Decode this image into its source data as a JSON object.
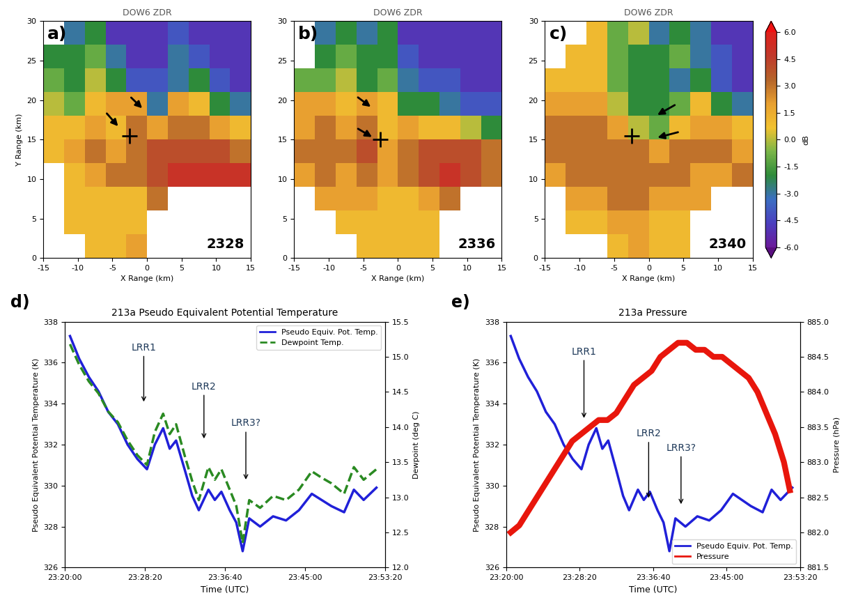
{
  "chart_data": [
    {
      "type": "heatmap",
      "title": "DOW6 ZDR",
      "panel": "a)",
      "time": "2328",
      "x_label": "X Range (km)",
      "y_label": "Y Range (km)",
      "xlim": [
        -15,
        15
      ],
      "ylim": [
        0,
        30
      ],
      "xticks": [
        -15,
        -10,
        -5,
        0,
        5,
        10,
        15
      ],
      "yticks": [
        0,
        5,
        10,
        15,
        20,
        25,
        30
      ],
      "x_centers": [
        -13.5,
        -10.5,
        -7.5,
        -4.5,
        -1.5,
        1.5,
        4.5,
        7.5,
        10.5,
        13.5
      ],
      "y_centers": [
        28.5,
        25.5,
        22.5,
        19.5,
        16.5,
        13.5,
        10.5,
        7.5,
        4.5,
        1.5
      ],
      "cells": [
        [
          null,
          -3,
          -2,
          -5,
          -5,
          -5,
          -4,
          -5,
          -5,
          -5
        ],
        [
          -2,
          -2,
          -1,
          -3,
          -5,
          -5,
          -3,
          -4,
          -5,
          -5
        ],
        [
          -1,
          -2,
          0,
          -2,
          -4,
          -4,
          -3,
          -2,
          -4,
          -5
        ],
        [
          0,
          -1,
          1,
          2,
          2,
          -3,
          2,
          1,
          -2,
          -3
        ],
        [
          1,
          1,
          2,
          1,
          3,
          2,
          3,
          3,
          2,
          1
        ],
        [
          1,
          2,
          3,
          2,
          3,
          4,
          4,
          4,
          4,
          3
        ],
        [
          null,
          1,
          2,
          3,
          3,
          4,
          5,
          5,
          5,
          5
        ],
        [
          null,
          1,
          1,
          1,
          1,
          3,
          null,
          null,
          null,
          null
        ],
        [
          null,
          1,
          1,
          1,
          1,
          null,
          null,
          null,
          null,
          null
        ],
        [
          null,
          null,
          1,
          1,
          2,
          null,
          null,
          null,
          null,
          null
        ]
      ],
      "point": [
        -2.5,
        15.5
      ],
      "arrows": [
        [
          -6,
          18.5,
          -4,
          16.5
        ],
        [
          -2.5,
          20.5,
          -0.5,
          18.8
        ]
      ]
    },
    {
      "type": "heatmap",
      "title": "DOW6 ZDR",
      "panel": "b)",
      "time": "2336",
      "x_label": "X Range (km)",
      "xlim": [
        -15,
        15
      ],
      "ylim": [
        0,
        30
      ],
      "xticks": [
        -15,
        -10,
        -5,
        0,
        5,
        10,
        15
      ],
      "yticks": [
        0,
        5,
        10,
        15,
        20,
        25,
        30
      ],
      "x_centers": [
        -13.5,
        -10.5,
        -7.5,
        -4.5,
        -1.5,
        1.5,
        4.5,
        7.5,
        10.5,
        13.5
      ],
      "y_centers": [
        28.5,
        25.5,
        22.5,
        19.5,
        16.5,
        13.5,
        10.5,
        7.5,
        4.5,
        1.5
      ],
      "cells": [
        [
          null,
          -3,
          -2,
          -3,
          -2,
          -5,
          -5,
          -5,
          -5,
          -5
        ],
        [
          null,
          -2,
          -1,
          -2,
          -2,
          -4,
          -5,
          -5,
          -5,
          -5
        ],
        [
          -1,
          -1,
          0,
          -2,
          -1,
          -3,
          -4,
          -4,
          -5,
          -5
        ],
        [
          2,
          2,
          1,
          2,
          1,
          -2,
          -2,
          -3,
          -4,
          -4
        ],
        [
          2,
          3,
          2,
          3,
          1,
          2,
          1,
          1,
          0,
          -2
        ],
        [
          3,
          3,
          3,
          4,
          2,
          3,
          4,
          4,
          4,
          3
        ],
        [
          2,
          3,
          2,
          3,
          2,
          3,
          4,
          5,
          4,
          3
        ],
        [
          null,
          2,
          2,
          2,
          1,
          1,
          2,
          3,
          null,
          null
        ],
        [
          null,
          null,
          1,
          1,
          1,
          1,
          1,
          null,
          null,
          null
        ],
        [
          null,
          null,
          null,
          1,
          1,
          1,
          1,
          null,
          null,
          null
        ]
      ],
      "point": [
        -2.5,
        15.0
      ],
      "arrows": [
        [
          -6,
          20.5,
          -3.7,
          19.0
        ],
        [
          -6,
          16.5,
          -3.5,
          15.2
        ]
      ]
    },
    {
      "type": "heatmap",
      "title": "DOW6 ZDR",
      "panel": "c)",
      "time": "2340",
      "x_label": "X Range (km)",
      "xlim": [
        -15,
        15
      ],
      "ylim": [
        0,
        30
      ],
      "xticks": [
        -15,
        -10,
        -5,
        0,
        5,
        10,
        15
      ],
      "yticks": [
        0,
        5,
        10,
        15,
        20,
        25,
        30
      ],
      "x_centers": [
        -13.5,
        -10.5,
        -7.5,
        -4.5,
        -1.5,
        1.5,
        4.5,
        7.5,
        10.5,
        13.5
      ],
      "y_centers": [
        28.5,
        25.5,
        22.5,
        19.5,
        16.5,
        13.5,
        10.5,
        7.5,
        4.5,
        1.5
      ],
      "cells": [
        [
          null,
          null,
          1,
          -1,
          0,
          -3,
          -2,
          -3,
          -5,
          -5
        ],
        [
          null,
          1,
          1,
          -1,
          -2,
          -2,
          -1,
          -3,
          -4,
          -5
        ],
        [
          1,
          1,
          1,
          -1,
          -2,
          -2,
          -3,
          -2,
          -4,
          -5
        ],
        [
          2,
          2,
          2,
          0,
          -2,
          -2,
          -1,
          1,
          -2,
          -3
        ],
        [
          3,
          3,
          3,
          2,
          0,
          -1,
          1,
          2,
          2,
          1
        ],
        [
          3,
          3,
          3,
          3,
          3,
          2,
          3,
          3,
          3,
          2
        ],
        [
          2,
          3,
          3,
          3,
          3,
          3,
          3,
          2,
          2,
          3
        ],
        [
          null,
          2,
          2,
          3,
          3,
          2,
          2,
          2,
          null,
          null
        ],
        [
          null,
          1,
          1,
          2,
          2,
          1,
          1,
          null,
          null,
          null
        ],
        [
          null,
          null,
          null,
          1,
          2,
          1,
          1,
          null,
          null,
          null
        ]
      ],
      "point": [
        -2.5,
        15.5
      ],
      "arrows": [
        [
          4,
          19.5,
          1,
          18.0
        ],
        [
          4.5,
          16.0,
          1,
          15.2
        ]
      ],
      "colorbar": {
        "label": "dB",
        "range": [
          -6,
          6
        ],
        "ticks": [
          {
            "value": -6,
            "label": "-6.0"
          },
          -4.5,
          {
            "value": -3,
            "label": "-3.0"
          },
          -1.5,
          {
            "value": 0,
            "label": "0.0"
          },
          1.5,
          {
            "value": 3,
            "label": "3.0"
          },
          4.5,
          {
            "value": 6,
            "label": "6.0"
          }
        ]
      }
    },
    {
      "type": "line",
      "panel": "d)",
      "title": "213a Pseudo Equivalent Potential Temperature",
      "x_label": "Time (UTC)",
      "y_label": "Pseudo Equivalent Potential Temperature (K)",
      "y2_label": "Dewpoint (deg C)",
      "xlim": [
        "23:20:00",
        "23:53:20"
      ],
      "xticks": [
        "23:20:00",
        "23:28:20",
        "23:36:40",
        "23:45:00",
        "23:53:20"
      ],
      "ylim": [
        326,
        338
      ],
      "yticks": [
        326,
        328,
        330,
        332,
        334,
        336,
        338
      ],
      "y2lim": [
        12,
        15.5
      ],
      "y2ticks": [
        {
          "value": 12,
          "label": "12.0"
        },
        12.5,
        {
          "value": 13,
          "label": "13.0"
        },
        13.5,
        {
          "value": 14,
          "label": "14.0"
        },
        14.5,
        {
          "value": 15,
          "label": "15.0"
        },
        15.5
      ],
      "legend": "upper right",
      "series": [
        {
          "name": "Pseudo Equiv. Pot. Temp.",
          "color": "#2020d8",
          "line_style": "solid",
          "x": [
            "23:20:32",
            "23:21:29",
            "23:22:30",
            "23:23:30",
            "23:24:31",
            "23:25:31",
            "23:26:32",
            "23:27:33",
            "23:28:33",
            "23:29:22",
            "23:30:14",
            "23:30:55",
            "23:31:35",
            "23:32:28",
            "23:33:16",
            "23:33:57",
            "23:34:57",
            "23:35:37",
            "23:36:18",
            "23:37:10",
            "23:37:51",
            "23:38:31",
            "23:39:12",
            "23:40:20",
            "23:41:41",
            "23:43:02",
            "23:44:23",
            "23:45:43",
            "23:46:44",
            "23:47:45",
            "23:49:05",
            "23:50:06",
            "23:51:07",
            "23:52:27"
          ],
          "values": [
            337.3,
            336.2,
            335.3,
            334.6,
            333.6,
            333.0,
            332.0,
            331.3,
            330.8,
            332.0,
            332.8,
            331.8,
            332.2,
            330.8,
            329.5,
            328.8,
            329.8,
            329.3,
            329.7,
            328.8,
            328.2,
            326.8,
            328.4,
            328.0,
            328.5,
            328.3,
            328.8,
            329.6,
            329.3,
            329.0,
            328.7,
            329.8,
            329.3,
            329.9
          ]
        },
        {
          "name": "Dewpoint Temp.",
          "color": "#2a8a22",
          "line_style": "dashed",
          "axis": "y2",
          "x": [
            "23:20:32",
            "23:21:29",
            "23:22:30",
            "23:23:30",
            "23:24:31",
            "23:25:31",
            "23:26:32",
            "23:27:33",
            "23:28:33",
            "23:29:22",
            "23:30:14",
            "23:30:55",
            "23:31:35",
            "23:32:28",
            "23:33:16",
            "23:33:57",
            "23:34:57",
            "23:35:37",
            "23:36:18",
            "23:37:10",
            "23:37:51",
            "23:38:31",
            "23:39:12",
            "23:40:20",
            "23:41:41",
            "23:43:02",
            "23:44:23",
            "23:45:43",
            "23:46:44",
            "23:47:45",
            "23:49:05",
            "23:50:06",
            "23:51:07",
            "23:52:27"
          ],
          "values": [
            15.18,
            14.89,
            14.65,
            14.48,
            14.22,
            14.07,
            13.81,
            13.6,
            13.46,
            13.93,
            14.19,
            13.9,
            14.04,
            13.6,
            13.23,
            12.96,
            13.43,
            13.25,
            13.4,
            13.11,
            12.88,
            12.35,
            12.96,
            12.85,
            13.02,
            12.96,
            13.11,
            13.37,
            13.28,
            13.2,
            13.05,
            13.43,
            13.25,
            13.4
          ]
        }
      ],
      "annotations": [
        {
          "text": "LRR1",
          "x": "23:28:13",
          "y": 334.0,
          "text_y": 336.5
        },
        {
          "text": "LRR2",
          "x": "23:34:29",
          "y": 332.2,
          "text_y": 334.6
        },
        {
          "text": "LRR3?",
          "x": "23:38:51",
          "y": 330.2,
          "text_y": 332.8
        }
      ]
    },
    {
      "type": "line",
      "panel": "e)",
      "title": "213a Pressure",
      "x_label": "Time (UTC)",
      "y_label": "Pseudo Equivalent Potential Temperature (K)",
      "y2_label": "Pressure (hPa)",
      "xlim": [
        "23:20:00",
        "23:53:20"
      ],
      "xticks": [
        "23:20:00",
        "23:28:20",
        "23:36:40",
        "23:45:00",
        "23:53:20"
      ],
      "ylim": [
        326,
        338
      ],
      "yticks": [
        326,
        328,
        330,
        332,
        334,
        336,
        338
      ],
      "y2lim": [
        881.5,
        885
      ],
      "y2ticks": [
        881.5,
        {
          "value": 882,
          "label": "882.0"
        },
        882.5,
        {
          "value": 883,
          "label": "883.0"
        },
        883.5,
        {
          "value": 884,
          "label": "884.0"
        },
        884.5,
        {
          "value": 885,
          "label": "885.0"
        }
      ],
      "legend": "lower right",
      "series": [
        {
          "name": "Pseudo Equiv. Pot. Temp.",
          "color": "#2020d8",
          "line_style": "solid",
          "x": [
            "23:20:32",
            "23:21:29",
            "23:22:30",
            "23:23:30",
            "23:24:31",
            "23:25:31",
            "23:26:32",
            "23:27:33",
            "23:28:33",
            "23:29:22",
            "23:30:14",
            "23:30:55",
            "23:31:35",
            "23:32:28",
            "23:33:16",
            "23:33:57",
            "23:34:57",
            "23:35:37",
            "23:36:18",
            "23:37:10",
            "23:37:51",
            "23:38:31",
            "23:39:12",
            "23:40:20",
            "23:41:41",
            "23:43:02",
            "23:44:23",
            "23:45:43",
            "23:46:44",
            "23:47:45",
            "23:49:05",
            "23:50:06",
            "23:51:07",
            "23:52:27"
          ],
          "values": [
            337.3,
            336.2,
            335.3,
            334.6,
            333.6,
            333.0,
            332.0,
            331.3,
            330.8,
            332.0,
            332.8,
            331.8,
            332.2,
            330.8,
            329.5,
            328.8,
            329.8,
            329.3,
            329.7,
            328.8,
            328.2,
            326.8,
            328.4,
            328.0,
            328.5,
            328.3,
            328.8,
            329.6,
            329.3,
            329.0,
            328.7,
            329.8,
            329.3,
            329.9
          ]
        },
        {
          "name": "Pressure",
          "color": "#e8160c",
          "line_style": "solid",
          "axis": "y2",
          "x": [
            "23:20:32",
            "23:21:30",
            "23:22:30",
            "23:23:30",
            "23:24:30",
            "23:25:30",
            "23:26:30",
            "23:27:30",
            "23:28:30",
            "23:29:30",
            "23:30:30",
            "23:31:30",
            "23:32:30",
            "23:33:30",
            "23:34:30",
            "23:35:30",
            "23:36:30",
            "23:37:30",
            "23:38:30",
            "23:39:30",
            "23:40:30",
            "23:41:30",
            "23:42:30",
            "23:43:30",
            "23:44:30",
            "23:45:30",
            "23:46:30",
            "23:47:30",
            "23:48:30",
            "23:49:30",
            "23:50:30",
            "23:51:30",
            "23:52:10"
          ],
          "values": [
            882.0,
            882.1,
            882.3,
            882.5,
            882.7,
            882.9,
            883.1,
            883.3,
            883.4,
            883.5,
            883.6,
            883.6,
            883.7,
            883.9,
            884.1,
            884.2,
            884.3,
            884.5,
            884.6,
            884.7,
            884.7,
            884.6,
            884.6,
            884.5,
            884.5,
            884.4,
            884.3,
            884.2,
            884.0,
            883.7,
            883.4,
            883.0,
            882.6
          ]
        }
      ],
      "annotations": [
        {
          "text": "LRR1",
          "x": "23:28:50",
          "y": 333.2,
          "text_y": 336.3
        },
        {
          "text": "LRR2",
          "x": "23:36:10",
          "y": 329.3,
          "text_y": 332.3
        },
        {
          "text": "LRR3?",
          "x": "23:39:50",
          "y": 329.0,
          "text_y": 331.6
        }
      ]
    }
  ]
}
